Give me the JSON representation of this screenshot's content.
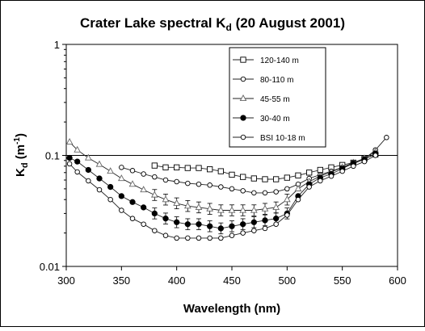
{
  "chart_data": {
    "type": "line",
    "title_main": "Crater Lake spectral K",
    "title_sub": "d",
    "title_rest": " (20 August 2001)",
    "xlabel": "Wavelength (nm)",
    "ylabel_main": "K",
    "ylabel_sub": "d",
    "ylabel_rest": " (m",
    "ylabel_sup": "-1",
    "ylabel_close": ")",
    "xlim": [
      300,
      600
    ],
    "ylim": [
      0.01,
      1
    ],
    "yscale": "log",
    "x_ticks": [
      {
        "value": 300,
        "label": "300"
      },
      {
        "value": 350,
        "label": "350"
      },
      {
        "value": 400,
        "label": "400"
      },
      {
        "value": 450,
        "label": "450"
      },
      {
        "value": 500,
        "label": "500"
      },
      {
        "value": 550,
        "label": "550"
      },
      {
        "value": 600,
        "label": "600"
      }
    ],
    "y_ticks": [
      {
        "value": 0.01,
        "label": "0.01"
      },
      {
        "value": 0.1,
        "label": "0.1"
      },
      {
        "value": 1,
        "label": "1"
      }
    ],
    "reference_line": 0.1,
    "legend_position": "top-right",
    "series": [
      {
        "name": "120-140 m",
        "marker": "square-open",
        "x": [
          380,
          390,
          400,
          410,
          420,
          430,
          440,
          450,
          460,
          470,
          480,
          490,
          500,
          510,
          520,
          530,
          540,
          550,
          560,
          570,
          580
        ],
        "y": [
          0.081,
          0.078,
          0.078,
          0.077,
          0.077,
          0.075,
          0.072,
          0.067,
          0.064,
          0.062,
          0.061,
          0.061,
          0.063,
          0.066,
          0.07,
          0.074,
          0.078,
          0.082,
          0.086,
          0.093,
          0.102
        ]
      },
      {
        "name": "80-110 m",
        "marker": "circle-open",
        "x": [
          350,
          360,
          370,
          380,
          390,
          400,
          410,
          420,
          430,
          440,
          450,
          460,
          470,
          480,
          490,
          500,
          510,
          520,
          530,
          540,
          550,
          560,
          570,
          580,
          590
        ],
        "y": [
          0.078,
          0.073,
          0.068,
          0.064,
          0.06,
          0.058,
          0.056,
          0.055,
          0.054,
          0.052,
          0.05,
          0.048,
          0.046,
          0.046,
          0.047,
          0.05,
          0.055,
          0.062,
          0.067,
          0.072,
          0.078,
          0.084,
          0.093,
          0.112,
          0.145
        ]
      },
      {
        "name": "45-55 m",
        "marker": "triangle-open",
        "x": [
          303,
          310,
          320,
          330,
          340,
          350,
          360,
          370,
          380,
          390,
          400,
          410,
          420,
          430,
          440,
          450,
          460,
          470,
          480,
          490,
          500,
          510,
          520,
          530,
          540,
          550,
          560,
          570,
          580
        ],
        "y": [
          0.132,
          0.112,
          0.095,
          0.083,
          0.072,
          0.062,
          0.055,
          0.049,
          0.044,
          0.04,
          0.037,
          0.035,
          0.034,
          0.033,
          0.032,
          0.032,
          0.032,
          0.032,
          0.033,
          0.034,
          0.04,
          0.05,
          0.058,
          0.065,
          0.071,
          0.078,
          0.086,
          0.094,
          0.108
        ]
      },
      {
        "name": "30-40 m",
        "marker": "circle-filled",
        "x": [
          303,
          310,
          320,
          330,
          340,
          350,
          360,
          370,
          380,
          390,
          400,
          410,
          420,
          430,
          440,
          450,
          460,
          470,
          480,
          490,
          500,
          510,
          520,
          530,
          540,
          550,
          560,
          570,
          580
        ],
        "y": [
          0.095,
          0.088,
          0.074,
          0.062,
          0.052,
          0.043,
          0.038,
          0.034,
          0.03,
          0.027,
          0.025,
          0.024,
          0.024,
          0.023,
          0.022,
          0.023,
          0.024,
          0.025,
          0.026,
          0.027,
          0.03,
          0.043,
          0.055,
          0.063,
          0.068,
          0.076,
          0.085,
          0.092,
          0.104
        ]
      },
      {
        "name": "BSI 10-18 m",
        "marker": "circle-open",
        "x": [
          303,
          310,
          320,
          330,
          340,
          350,
          360,
          370,
          380,
          390,
          400,
          410,
          420,
          430,
          440,
          450,
          460,
          470,
          480,
          490,
          500,
          510,
          520,
          530,
          540,
          550,
          560,
          570,
          580
        ],
        "y": [
          0.084,
          0.071,
          0.059,
          0.049,
          0.04,
          0.032,
          0.027,
          0.024,
          0.021,
          0.019,
          0.018,
          0.018,
          0.018,
          0.018,
          0.018,
          0.019,
          0.02,
          0.021,
          0.022,
          0.024,
          0.029,
          0.04,
          0.052,
          0.059,
          0.065,
          0.072,
          0.08,
          0.088,
          0.1
        ]
      }
    ]
  }
}
